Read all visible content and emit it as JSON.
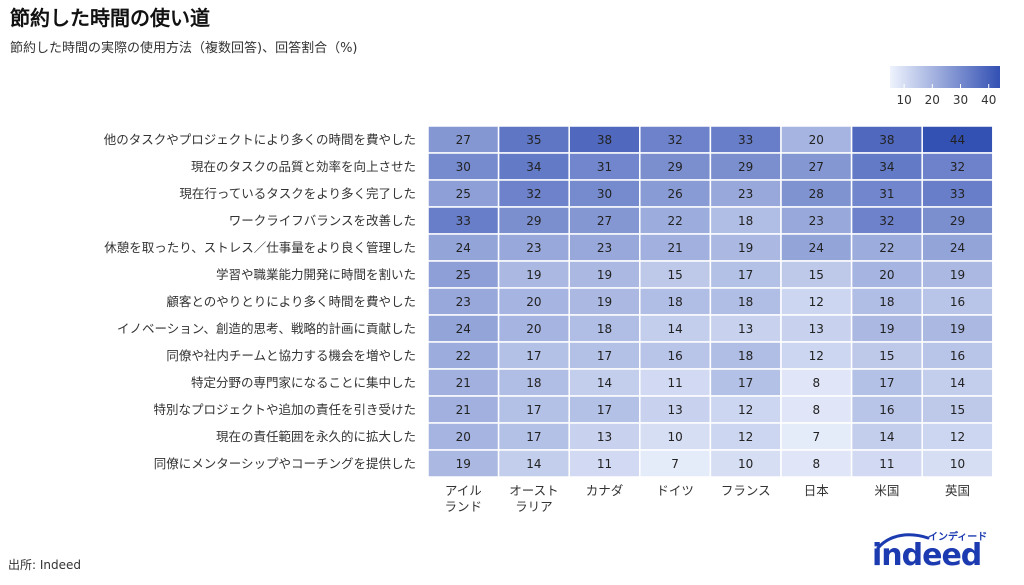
{
  "header": {
    "title": "節約した時間の使い道",
    "subtitle": "節約した時間の実際の使用方法（複数回答)、回答割合（%)"
  },
  "footer": {
    "source": "出所: Indeed"
  },
  "logo": {
    "word": "indeed",
    "kana": "インディード",
    "color": "#1d3bb0"
  },
  "chart_data": {
    "type": "heatmap",
    "title": "節約した時間の使い道",
    "subtitle": "節約した時間の実際の使用方法（複数回答)、回答割合（%)",
    "columns": [
      [
        "アイル",
        "ランド"
      ],
      [
        "オースト",
        "ラリア"
      ],
      [
        "カナダ"
      ],
      [
        "ドイツ"
      ],
      [
        "フランス"
      ],
      [
        "日本"
      ],
      [
        "米国"
      ],
      [
        "英国"
      ]
    ],
    "rows": [
      "他のタスクやプロジェクトにより多くの時間を費やした",
      "現在のタスクの品質と効率を向上させた",
      "現在行っているタスクをより多く完了した",
      "ワークライフバランスを改善した",
      "休憩を取ったり、ストレス／仕事量をより良く管理した",
      "学習や職業能力開発に時間を割いた",
      "顧客とのやりとりにより多く時間を費やした",
      "イノベーション、創造的思考、戦略的計画に貢献した",
      "同僚や社内チームと協力する機会を増やした",
      "特定分野の専門家になることに集中した",
      "特別なプロジェクトや追加の責任を引き受けた",
      "現在の責任範囲を永久的に拡大した",
      "同僚にメンターシップやコーチングを提供した"
    ],
    "values": [
      [
        27,
        35,
        38,
        32,
        33,
        20,
        38,
        44
      ],
      [
        30,
        34,
        31,
        29,
        29,
        27,
        34,
        32
      ],
      [
        25,
        32,
        30,
        26,
        23,
        28,
        31,
        33
      ],
      [
        33,
        29,
        27,
        22,
        18,
        23,
        32,
        29
      ],
      [
        24,
        23,
        23,
        21,
        19,
        24,
        22,
        24
      ],
      [
        25,
        19,
        19,
        15,
        17,
        15,
        20,
        19
      ],
      [
        23,
        20,
        19,
        18,
        18,
        12,
        18,
        16
      ],
      [
        24,
        20,
        18,
        14,
        13,
        13,
        19,
        19
      ],
      [
        22,
        17,
        17,
        16,
        18,
        12,
        15,
        16
      ],
      [
        21,
        18,
        14,
        11,
        17,
        8,
        17,
        14
      ],
      [
        21,
        17,
        17,
        13,
        12,
        8,
        16,
        15
      ],
      [
        20,
        17,
        13,
        10,
        12,
        7,
        14,
        12
      ],
      [
        19,
        14,
        11,
        7,
        10,
        8,
        11,
        10
      ]
    ],
    "color_scale": {
      "min": 5,
      "max": 44,
      "low_color": "#eef3fd",
      "high_color": "#3350b3",
      "ticks": [
        10,
        20,
        30,
        40
      ]
    },
    "legend_placement": "top-right",
    "grid": false
  }
}
